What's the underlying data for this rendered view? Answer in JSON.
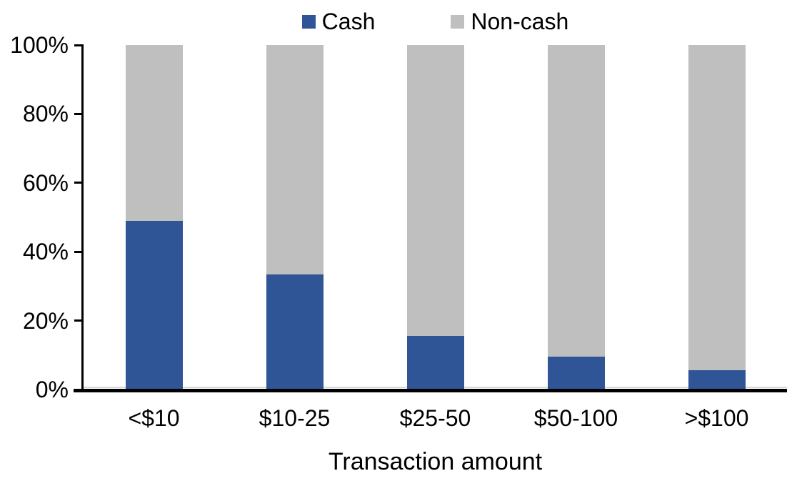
{
  "chart_data": {
    "type": "bar",
    "stacked": true,
    "stacked_100_percent": true,
    "categories": [
      "<$10",
      "$10-25",
      "$25-50",
      "$50-100",
      ">$100"
    ],
    "series": [
      {
        "name": "Cash",
        "color": "#2F5597",
        "values": [
          49,
          33.5,
          15.5,
          9.5,
          5.5
        ]
      },
      {
        "name": "Non-cash",
        "color": "#BFBFBF",
        "values": [
          51,
          66.5,
          84.5,
          90.5,
          94.5
        ]
      }
    ],
    "title": "",
    "xlabel": "Transaction amount",
    "ylabel": "",
    "ylim": [
      0,
      100
    ],
    "yticks": [
      0,
      20,
      40,
      60,
      80,
      100
    ],
    "ytick_labels": [
      "0%",
      "20%",
      "40%",
      "60%",
      "80%",
      "100%"
    ],
    "grid": false,
    "legend_position": "top-center"
  },
  "colors": {
    "cash": "#2F5597",
    "noncash": "#BFBFBF",
    "axis": "#000000",
    "baseline_accent": "#D9D9D9",
    "background": "#FFFFFF"
  }
}
